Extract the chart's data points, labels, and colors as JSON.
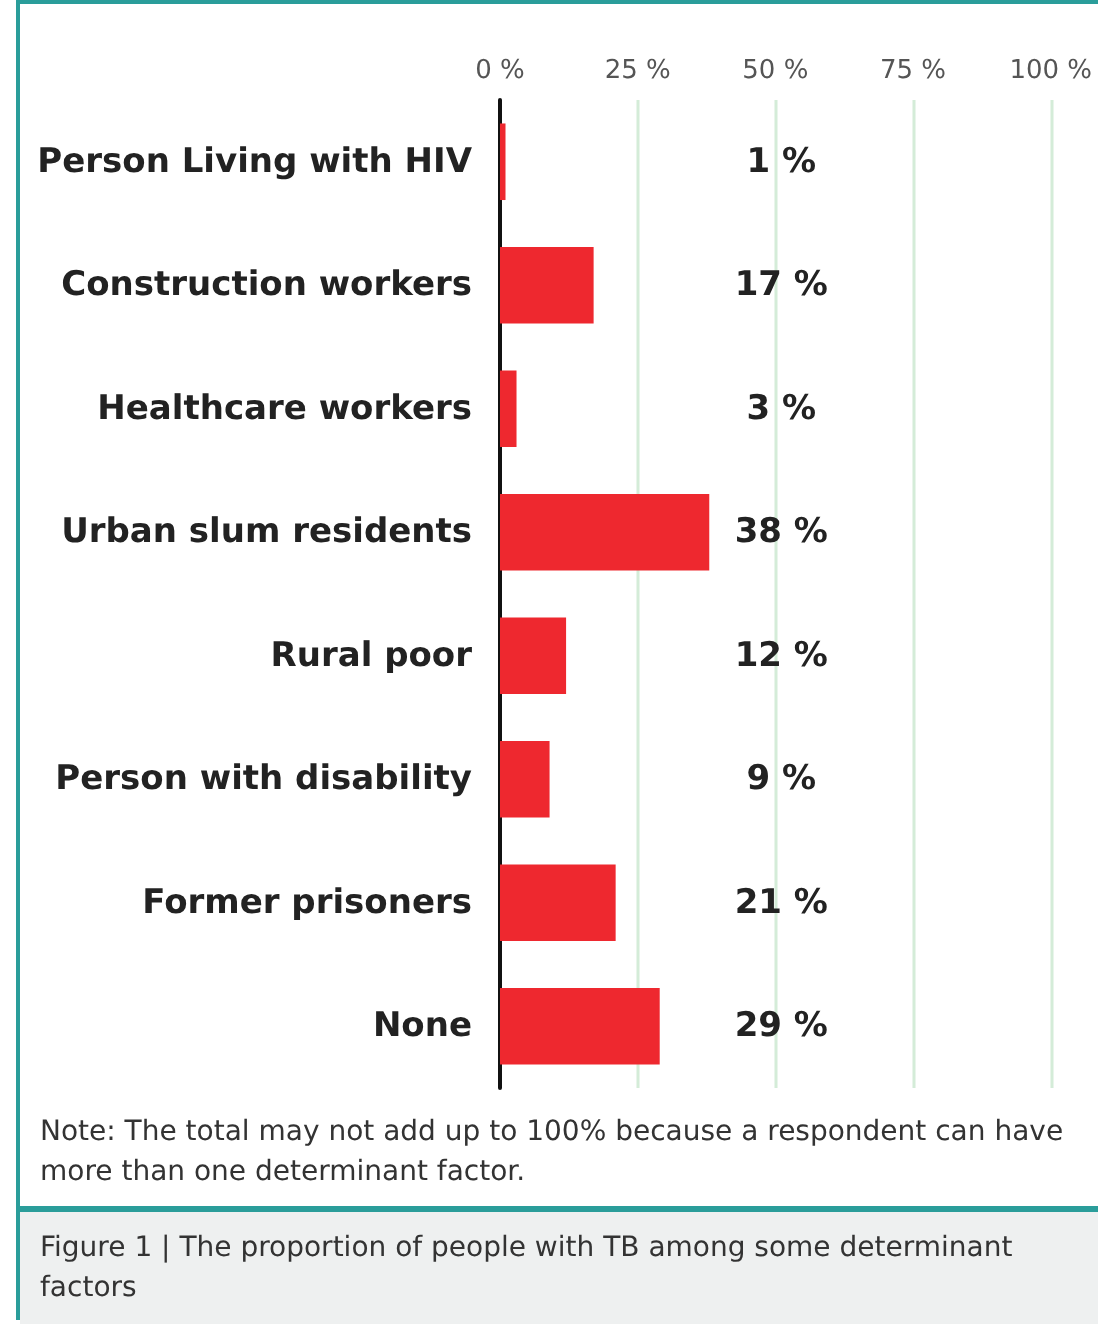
{
  "chart_data": {
    "type": "bar",
    "orientation": "horizontal",
    "categories": [
      "Person Living with HIV",
      "Construction workers",
      "Healthcare workers",
      "Urban slum residents",
      "Rural poor",
      "Person with disability",
      "Former prisoners",
      "None"
    ],
    "values": [
      1,
      17,
      3,
      38,
      12,
      9,
      21,
      29
    ],
    "value_labels": [
      "1 %",
      "17 %",
      "3 %",
      "38 %",
      "12 %",
      "9 %",
      "21 %",
      "29 %"
    ],
    "color": "#ee282f",
    "xlim": [
      0,
      100
    ],
    "xticks": [
      {
        "value": 0,
        "label": "0 %"
      },
      {
        "value": 25,
        "label": "25 %"
      },
      {
        "value": 50,
        "label": "50 %"
      },
      {
        "value": 75,
        "label": "75 %"
      },
      {
        "value": 100,
        "label": "100 %"
      }
    ],
    "grid": "x",
    "annotations": [
      "Note: The total may not add up to 100% because a respondent can have more than one determinant factor.",
      "Figure 1 | The proportion of people with TB among some determinant factors"
    ]
  }
}
